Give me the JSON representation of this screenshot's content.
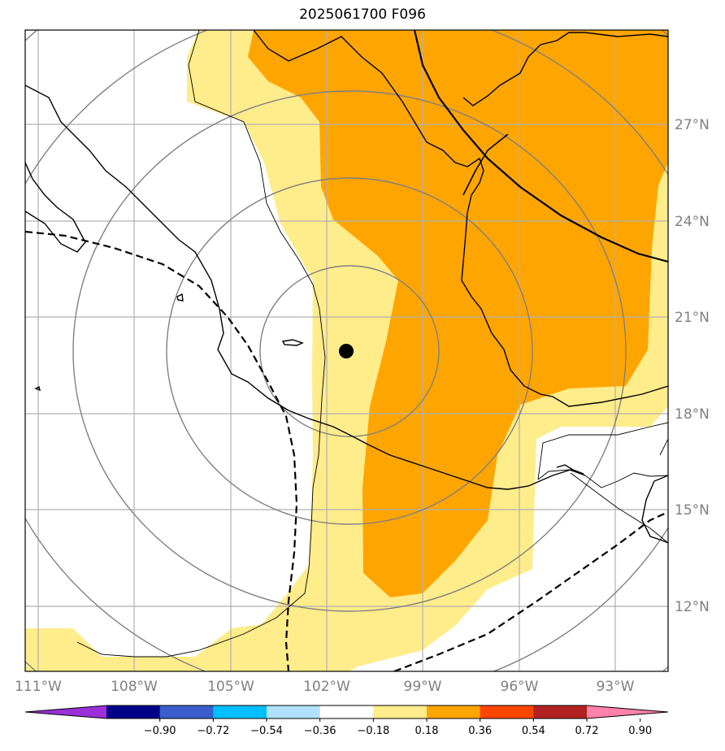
{
  "title": "2025061700 F096",
  "map": {
    "lon_ticks": [
      "111°W",
      "108°W",
      "105°W",
      "102°W",
      "99°W",
      "96°W",
      "93°W"
    ],
    "lat_ticks": [
      "27°N",
      "24°N",
      "21°N",
      "18°N",
      "15°N",
      "12°N"
    ],
    "center_marker": {
      "lon": -101.5,
      "lat": 19.9
    },
    "range_ring_count": 5
  },
  "colorbar": {
    "labels": [
      "−0.90",
      "−0.72",
      "−0.54",
      "−0.36",
      "−0.18",
      "0.18",
      "0.36",
      "0.54",
      "0.72",
      "0.90"
    ],
    "colors": [
      "#9b30d8",
      "#00008b",
      "#3a5fcd",
      "#00bfff",
      "#b0e2ff",
      "#ffffff",
      "#ffec8b",
      "#ffa500",
      "#ff4500",
      "#b22222",
      "#ff82ab"
    ],
    "extend": "both"
  },
  "fill_colors": {
    "light": "#ffec8b",
    "medium": "#ffa500"
  }
}
